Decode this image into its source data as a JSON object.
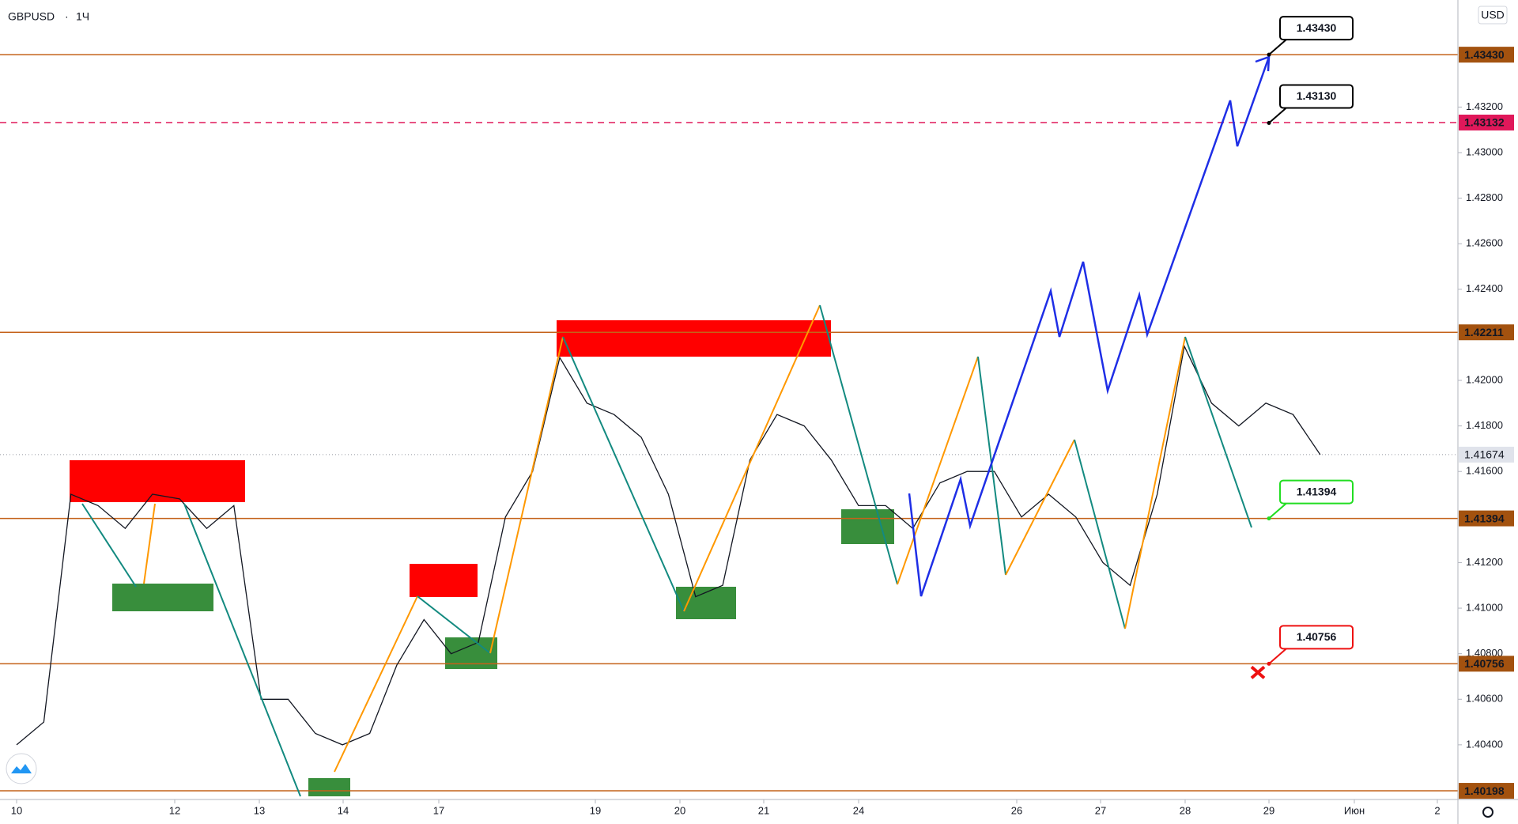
{
  "header": {
    "symbol": "GBPUSD",
    "interval": "1Ч",
    "currency": "USD"
  },
  "chart_data": {
    "type": "line",
    "color": "#131722",
    "values": [
      1.404,
      1.405,
      1.415,
      1.4145,
      1.4135,
      1.415,
      1.4148,
      1.4135,
      1.4145,
      1.406,
      1.406,
      1.4045,
      1.404,
      1.4045,
      1.4075,
      1.4095,
      1.408,
      1.4085,
      1.414,
      1.416,
      1.421,
      1.419,
      1.4185,
      1.4175,
      1.415,
      1.4105,
      1.411,
      1.4165,
      1.4185,
      1.418,
      1.4165,
      1.4145,
      1.4145,
      1.4135,
      1.4155,
      1.416,
      1.416,
      1.414,
      1.415,
      1.414,
      1.412,
      1.411,
      1.415,
      1.4215,
      1.419,
      1.418,
      1.419,
      1.4185,
      1.41674
    ],
    "ylim": [
      1.4016,
      1.4367
    ],
    "yticks": [
      {
        "value": 1.404,
        "label": "1.40400"
      },
      {
        "value": 1.406,
        "label": "1.40600"
      },
      {
        "value": 1.408,
        "label": "1.40800"
      },
      {
        "value": 1.41,
        "label": "1.41000"
      },
      {
        "value": 1.412,
        "label": "1.41200"
      },
      {
        "value": 1.416,
        "label": "1.41600"
      },
      {
        "value": 1.418,
        "label": "1.41800"
      },
      {
        "value": 1.42,
        "label": "1.42000"
      },
      {
        "value": 1.424,
        "label": "1.42400"
      },
      {
        "value": 1.426,
        "label": "1.42600"
      },
      {
        "value": 1.428,
        "label": "1.42800"
      },
      {
        "value": 1.43,
        "label": "1.43000"
      },
      {
        "value": 1.432,
        "label": "1.43200"
      }
    ],
    "xtick_labels": [
      "10",
      "12",
      "13",
      "14",
      "17",
      "19",
      "20",
      "21",
      "24",
      "26",
      "27",
      "28",
      "29",
      "Июн",
      "2"
    ],
    "levels": [
      {
        "value": 1.4343,
        "label": "1.43430",
        "color": "#c4621a",
        "dashed": false
      },
      {
        "value": 1.43132,
        "label": "1.43132",
        "color": "#e0185a",
        "dashed": true
      },
      {
        "value": 1.42211,
        "label": "1.42211",
        "color": "#c4621a",
        "dashed": false
      },
      {
        "value": 1.41394,
        "label": "1.41394",
        "color": "#c4621a",
        "dashed": false
      },
      {
        "value": 1.40756,
        "label": "1.40756",
        "color": "#c4621a",
        "dashed": false
      },
      {
        "value": 1.40198,
        "label": "1.40198",
        "color": "#c4621a",
        "dashed": false
      }
    ],
    "current_price": {
      "value": 1.41674,
      "label": "1.41674"
    },
    "callouts": [
      {
        "value": 1.4343,
        "label": "1.43430",
        "color": "#000000"
      },
      {
        "value": 1.4313,
        "label": "1.43130",
        "color": "#000000"
      },
      {
        "value": 1.41394,
        "label": "1.41394",
        "color": "#22dd22"
      },
      {
        "value": 1.40756,
        "label": "1.40756",
        "color": "#ee1111"
      }
    ]
  }
}
